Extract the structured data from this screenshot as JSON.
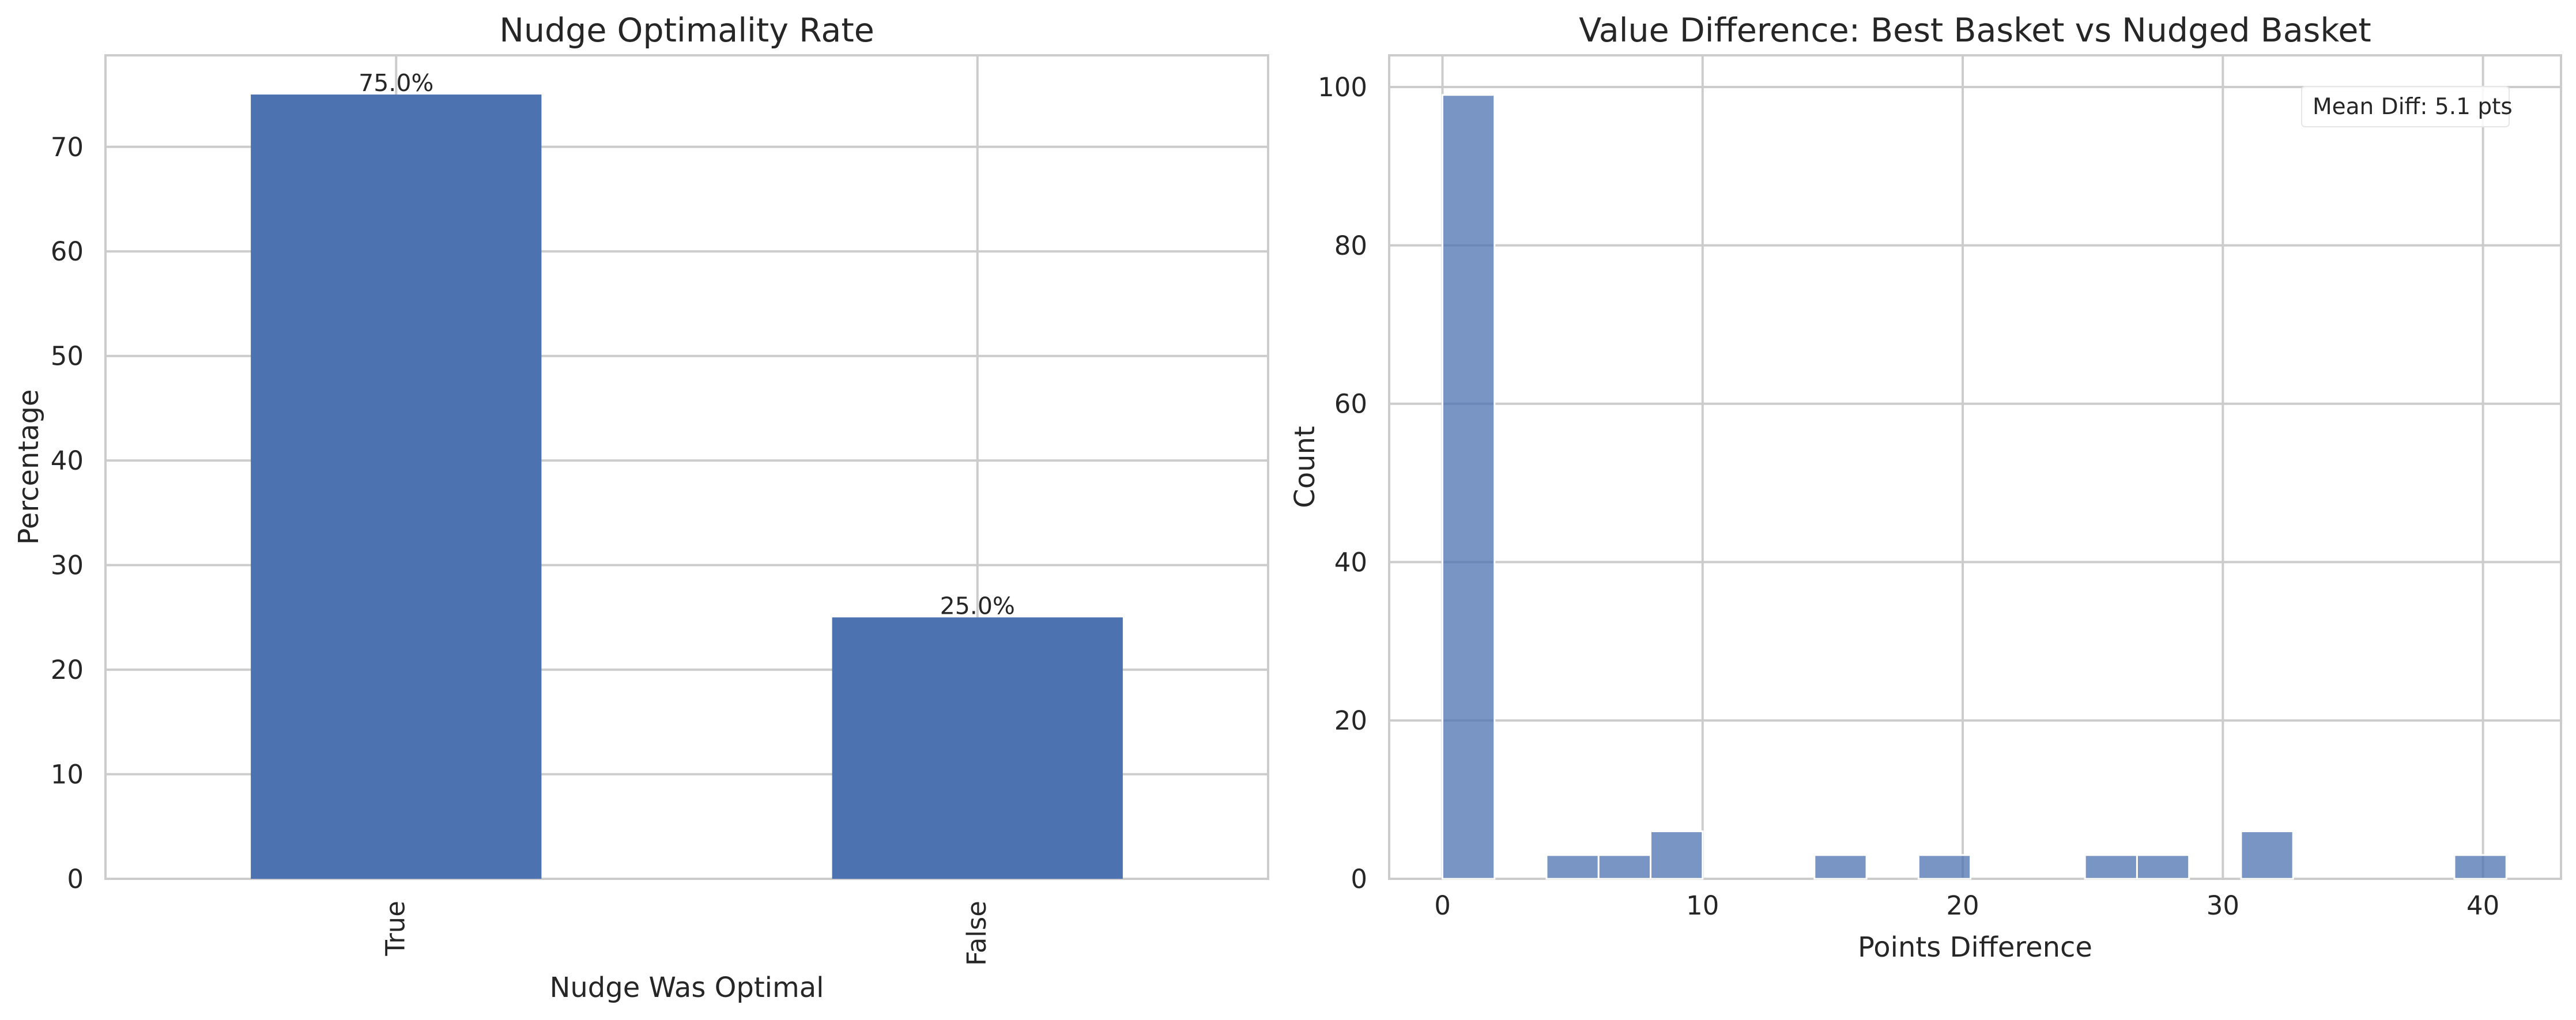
{
  "chart_data": [
    {
      "type": "bar",
      "title": "Nudge Optimality Rate",
      "xlabel": "Nudge Was Optimal",
      "ylabel": "Percentage",
      "categories": [
        "True",
        "False"
      ],
      "values": [
        75.0,
        25.0
      ],
      "value_labels": [
        "75.0%",
        "25.0%"
      ],
      "ylim": [
        0,
        78.75
      ],
      "yticks": [
        0,
        10,
        20,
        30,
        40,
        50,
        60,
        70
      ],
      "grid": true,
      "bar_color": "#4c72b0",
      "xtick_rotation": "vertical"
    },
    {
      "type": "bar",
      "subtype": "histogram",
      "title": "Value Difference: Best Basket vs Nudged Basket",
      "xlabel": "Points Difference",
      "ylabel": "Count",
      "bins": [
        {
          "x0": 0,
          "x1": 2,
          "count": 99
        },
        {
          "x0": 4,
          "x1": 6,
          "count": 3
        },
        {
          "x0": 6,
          "x1": 8,
          "count": 3
        },
        {
          "x0": 8,
          "x1": 10,
          "count": 6
        },
        {
          "x0": 14.3,
          "x1": 16.3,
          "count": 3
        },
        {
          "x0": 18.3,
          "x1": 20.3,
          "count": 3
        },
        {
          "x0": 24.7,
          "x1": 26.7,
          "count": 3
        },
        {
          "x0": 26.7,
          "x1": 28.7,
          "count": 3
        },
        {
          "x0": 30.7,
          "x1": 32.7,
          "count": 6
        },
        {
          "x0": 38.9,
          "x1": 40.9,
          "count": 3
        }
      ],
      "xlim": [
        -2.05,
        43
      ],
      "xticks": [
        0,
        10,
        20,
        30,
        40
      ],
      "ylim": [
        0,
        104
      ],
      "yticks": [
        0,
        20,
        40,
        60,
        80,
        100
      ],
      "grid": true,
      "bar_color": "#4c72b0",
      "bar_opacity": 0.75,
      "legend": {
        "text": "Mean Diff: 5.1 pts",
        "position": "upper-right"
      }
    }
  ]
}
